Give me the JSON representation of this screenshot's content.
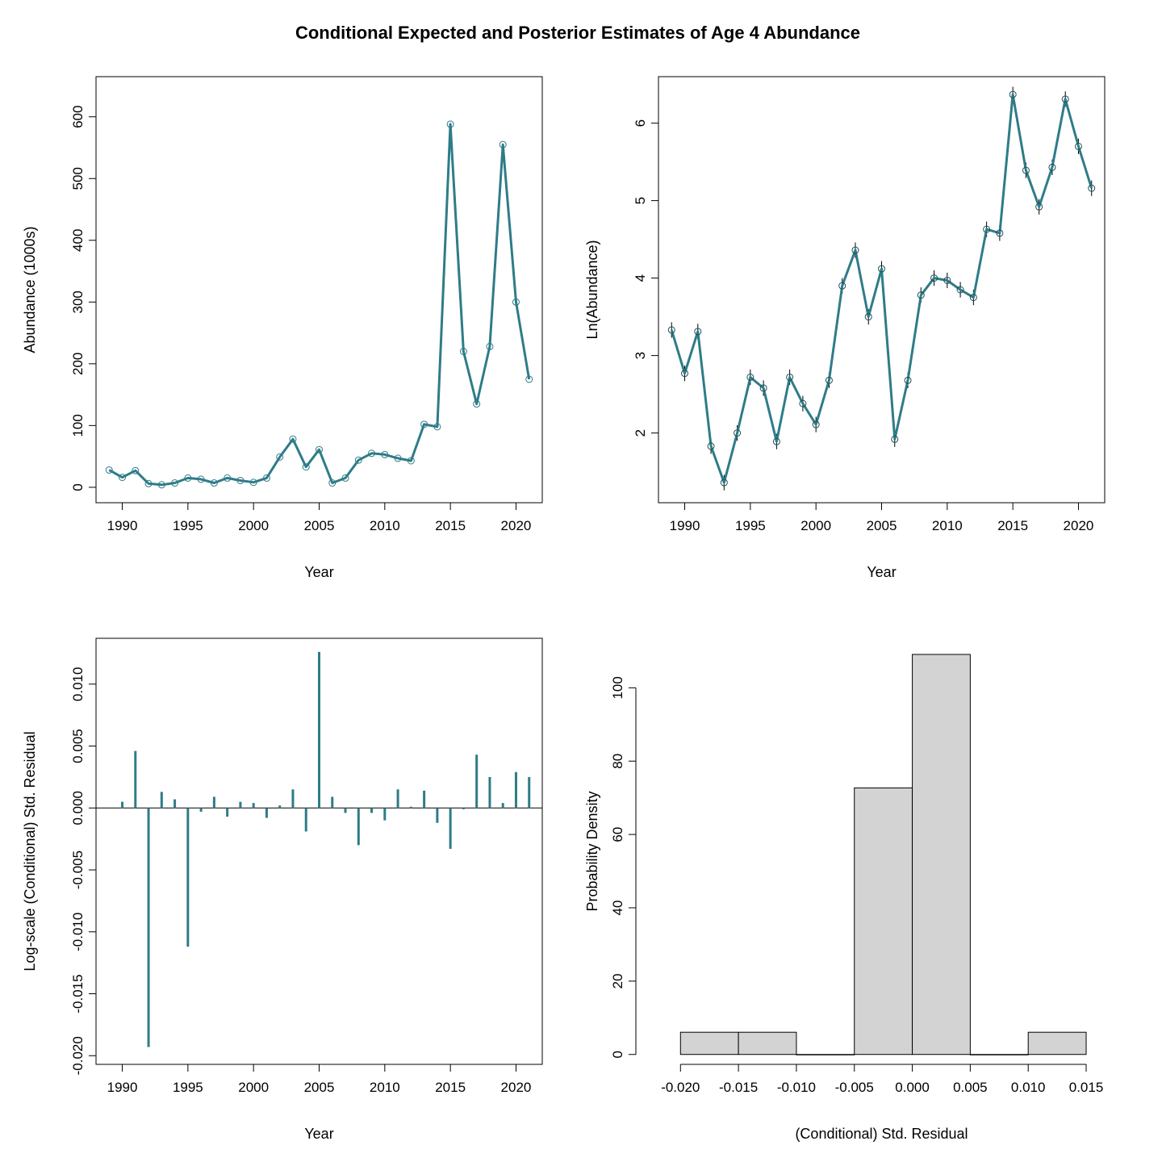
{
  "title": "Conditional Expected and Posterior Estimates of Age 4 Abundance",
  "colors": {
    "series": "#2E7C88",
    "hist_fill": "#D3D3D3",
    "axis": "#000000",
    "background": "#FFFFFF"
  },
  "panels": [
    {
      "xlabel": "Year",
      "ylabel": "Abundance (1000s)"
    },
    {
      "xlabel": "Year",
      "ylabel": "Ln(Abundance)"
    },
    {
      "xlabel": "Year",
      "ylabel": "Log-scale (Conditional) Std. Residual"
    },
    {
      "xlabel": "(Conditional) Std. Residual",
      "ylabel": "Probability Density"
    }
  ],
  "chart_data": [
    {
      "type": "line",
      "xlabel": "Year",
      "ylabel": "Abundance (1000s)",
      "xlim": [
        1988,
        2022
      ],
      "ylim": [
        -25,
        665
      ],
      "xticks": [
        "1990",
        "1995",
        "2000",
        "2005",
        "2010",
        "2015",
        "2020"
      ],
      "yticks": [
        "0",
        "100",
        "200",
        "300",
        "400",
        "500",
        "600"
      ],
      "x": [
        1989,
        1990,
        1991,
        1992,
        1993,
        1994,
        1995,
        1996,
        1997,
        1998,
        1999,
        2000,
        2001,
        2002,
        2003,
        2004,
        2005,
        2006,
        2007,
        2008,
        2009,
        2010,
        2011,
        2012,
        2013,
        2014,
        2015,
        2016,
        2017,
        2018,
        2019,
        2020,
        2021
      ],
      "series": [
        {
          "marker": "line",
          "values": [
            28,
            16,
            27,
            6,
            4,
            7,
            15,
            13,
            7,
            15,
            11,
            8,
            15,
            49,
            78,
            33,
            61,
            7,
            15,
            44,
            55,
            53,
            47,
            43,
            102,
            98,
            588,
            220,
            135,
            228,
            555,
            300,
            175
          ]
        },
        {
          "marker": "open-circle",
          "values": [
            28,
            16,
            27,
            6,
            4,
            7,
            15,
            13,
            7,
            15,
            11,
            8,
            15,
            49,
            78,
            33,
            61,
            7,
            15,
            44,
            55,
            53,
            47,
            43,
            102,
            98,
            588,
            220,
            135,
            228,
            555,
            300,
            175
          ]
        }
      ]
    },
    {
      "type": "line",
      "xlabel": "Year",
      "ylabel": "Ln(Abundance)",
      "xlim": [
        1988,
        2022
      ],
      "ylim": [
        1.1,
        6.6
      ],
      "xticks": [
        "1990",
        "1995",
        "2000",
        "2005",
        "2010",
        "2015",
        "2020"
      ],
      "yticks": [
        "2",
        "3",
        "4",
        "5",
        "6"
      ],
      "x": [
        1989,
        1990,
        1991,
        1992,
        1993,
        1994,
        1995,
        1996,
        1997,
        1998,
        1999,
        2000,
        2001,
        2002,
        2003,
        2004,
        2005,
        2006,
        2007,
        2008,
        2009,
        2010,
        2011,
        2012,
        2013,
        2014,
        2015,
        2016,
        2017,
        2018,
        2019,
        2020,
        2021
      ],
      "series": [
        {
          "marker": "line",
          "values": [
            3.33,
            2.77,
            3.31,
            1.83,
            1.36,
            2.0,
            2.72,
            2.58,
            1.89,
            2.72,
            2.38,
            2.11,
            2.68,
            3.9,
            4.36,
            3.5,
            4.12,
            1.92,
            2.68,
            3.78,
            4.0,
            3.97,
            3.85,
            3.75,
            4.63,
            4.58,
            6.37,
            5.39,
            4.92,
            5.43,
            6.31,
            5.7,
            5.16
          ]
        },
        {
          "marker": "open-circle",
          "values": [
            3.33,
            2.77,
            3.31,
            1.83,
            1.36,
            2.0,
            2.72,
            2.58,
            1.89,
            2.72,
            2.38,
            2.11,
            2.68,
            3.9,
            4.36,
            3.5,
            4.12,
            1.92,
            2.68,
            3.78,
            4.0,
            3.97,
            3.85,
            3.75,
            4.63,
            4.58,
            6.37,
            5.39,
            4.92,
            5.43,
            6.31,
            5.7,
            5.16
          ]
        }
      ],
      "interval_halfwidth": 0.1
    },
    {
      "type": "bar",
      "xlabel": "Year",
      "ylabel": "Log-scale (Conditional) Std. Residual",
      "xlim": [
        1988,
        2022
      ],
      "ylim": [
        -0.0207,
        0.0137
      ],
      "xticks": [
        "1990",
        "1995",
        "2000",
        "2005",
        "2010",
        "2015",
        "2020"
      ],
      "yticks": [
        "-0.020",
        "-0.015",
        "-0.010",
        "-0.005",
        "0.000",
        "0.005",
        "0.010"
      ],
      "x": [
        1989,
        1990,
        1991,
        1992,
        1993,
        1994,
        1995,
        1996,
        1997,
        1998,
        1999,
        2000,
        2001,
        2002,
        2003,
        2004,
        2005,
        2006,
        2007,
        2008,
        2009,
        2010,
        2011,
        2012,
        2013,
        2014,
        2015,
        2016,
        2017,
        2018,
        2019,
        2020,
        2021
      ],
      "values": [
        0.0,
        0.0005,
        0.0046,
        -0.0193,
        0.0013,
        0.0007,
        -0.0112,
        -0.0003,
        0.0009,
        -0.0007,
        0.0005,
        0.0004,
        -0.0008,
        0.0002,
        0.0015,
        -0.0019,
        0.0126,
        0.0009,
        -0.0004,
        -0.003,
        -0.0004,
        -0.001,
        0.0015,
        0.0001,
        0.0014,
        -0.0012,
        -0.0033,
        -0.0001,
        0.0043,
        0.0025,
        0.0004,
        0.0029,
        0.0025
      ]
    },
    {
      "type": "bar",
      "xlabel": "(Conditional) Std. Residual",
      "ylabel": "Probability Density",
      "xlim": [
        -0.0219,
        0.0166
      ],
      "ylim": [
        -2.7,
        113.5
      ],
      "xticks": [
        "-0.020",
        "-0.015",
        "-0.010",
        "-0.005",
        "0.000",
        "0.005",
        "0.010",
        "0.015"
      ],
      "yticks": [
        "0",
        "20",
        "40",
        "60",
        "80",
        "100"
      ],
      "bins": [
        {
          "start": -0.02,
          "end": -0.015,
          "density": 6.06
        },
        {
          "start": -0.015,
          "end": -0.01,
          "density": 6.06
        },
        {
          "start": -0.01,
          "end": -0.005,
          "density": 0
        },
        {
          "start": -0.005,
          "end": 0.0,
          "density": 72.7
        },
        {
          "start": 0.0,
          "end": 0.005,
          "density": 109.1
        },
        {
          "start": 0.005,
          "end": 0.01,
          "density": 0
        },
        {
          "start": 0.01,
          "end": 0.015,
          "density": 6.06
        }
      ]
    }
  ]
}
